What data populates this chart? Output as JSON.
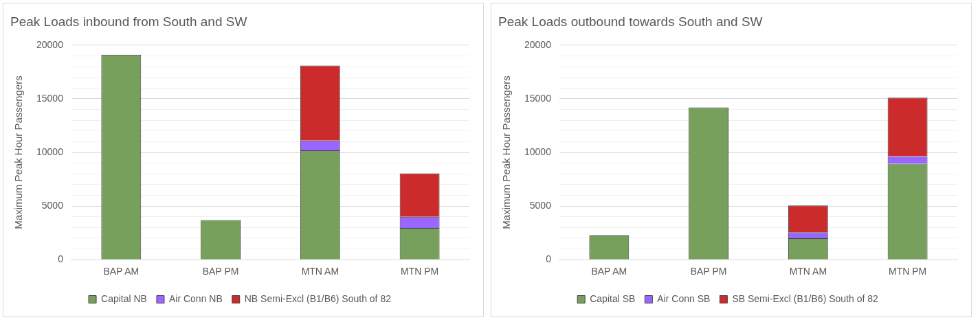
{
  "chart_data": [
    {
      "type": "bar",
      "title": "Peak Loads inbound from South and SW",
      "ylabel": "Maximum Peak Hour Passengers",
      "categories": [
        "BAP AM",
        "BAP PM",
        "MTN AM",
        "MTN PM"
      ],
      "stacked": true,
      "series": [
        {
          "name": "Capital NB",
          "color": "#76a05b",
          "values": [
            19100,
            3700,
            10200,
            2950
          ]
        },
        {
          "name": "Air Conn NB",
          "color": "#9966ff",
          "values": [
            0,
            0,
            900,
            1050
          ]
        },
        {
          "name": "NB Semi-Excl (B1/B6) South of 82",
          "color": "#cc2b2b",
          "values": [
            0,
            0,
            7000,
            4050
          ]
        }
      ],
      "ylim": [
        0,
        20000
      ],
      "yticks": [
        0,
        {
          "value": 1000,
          "label": null
        },
        {
          "value": 2000,
          "label": null
        },
        {
          "value": 3000,
          "label": null
        },
        {
          "value": 4000,
          "label": null
        },
        5000,
        {
          "value": 6000,
          "label": null
        },
        {
          "value": 7000,
          "label": null
        },
        {
          "value": 8000,
          "label": null
        },
        {
          "value": 9000,
          "label": null
        },
        10000,
        {
          "value": 11000,
          "label": null
        },
        {
          "value": 12000,
          "label": null
        },
        {
          "value": 13000,
          "label": null
        },
        {
          "value": 14000,
          "label": null
        },
        15000,
        {
          "value": 16000,
          "label": null
        },
        {
          "value": 17000,
          "label": null
        },
        {
          "value": 18000,
          "label": null
        },
        {
          "value": 19000,
          "label": null
        },
        20000
      ],
      "grid": "y",
      "legend": "bottom"
    },
    {
      "type": "bar",
      "title": "Peak Loads outbound towards South and SW",
      "ylabel": "Maximum Peak Hour Passengers",
      "categories": [
        "BAP AM",
        "BAP PM",
        "MTN AM",
        "MTN PM"
      ],
      "stacked": true,
      "series": [
        {
          "name": "Capital SB",
          "color": "#76a05b",
          "values": [
            2250,
            14200,
            2000,
            8950
          ]
        },
        {
          "name": "Air Conn SB",
          "color": "#9966ff",
          "values": [
            0,
            0,
            550,
            700
          ]
        },
        {
          "name": "SB Semi-Excl (B1/B6) South of 82",
          "color": "#cc2b2b",
          "values": [
            0,
            0,
            2500,
            5450
          ]
        }
      ],
      "ylim": [
        0,
        20000
      ],
      "yticks": [
        0,
        {
          "value": 1000,
          "label": null
        },
        {
          "value": 2000,
          "label": null
        },
        {
          "value": 3000,
          "label": null
        },
        {
          "value": 4000,
          "label": null
        },
        5000,
        {
          "value": 6000,
          "label": null
        },
        {
          "value": 7000,
          "label": null
        },
        {
          "value": 8000,
          "label": null
        },
        {
          "value": 9000,
          "label": null
        },
        10000,
        {
          "value": 11000,
          "label": null
        },
        {
          "value": 12000,
          "label": null
        },
        {
          "value": 13000,
          "label": null
        },
        {
          "value": 14000,
          "label": null
        },
        15000,
        {
          "value": 16000,
          "label": null
        },
        {
          "value": 17000,
          "label": null
        },
        {
          "value": 18000,
          "label": null
        },
        {
          "value": 19000,
          "label": null
        },
        20000
      ],
      "grid": "y",
      "legend": "bottom"
    }
  ]
}
